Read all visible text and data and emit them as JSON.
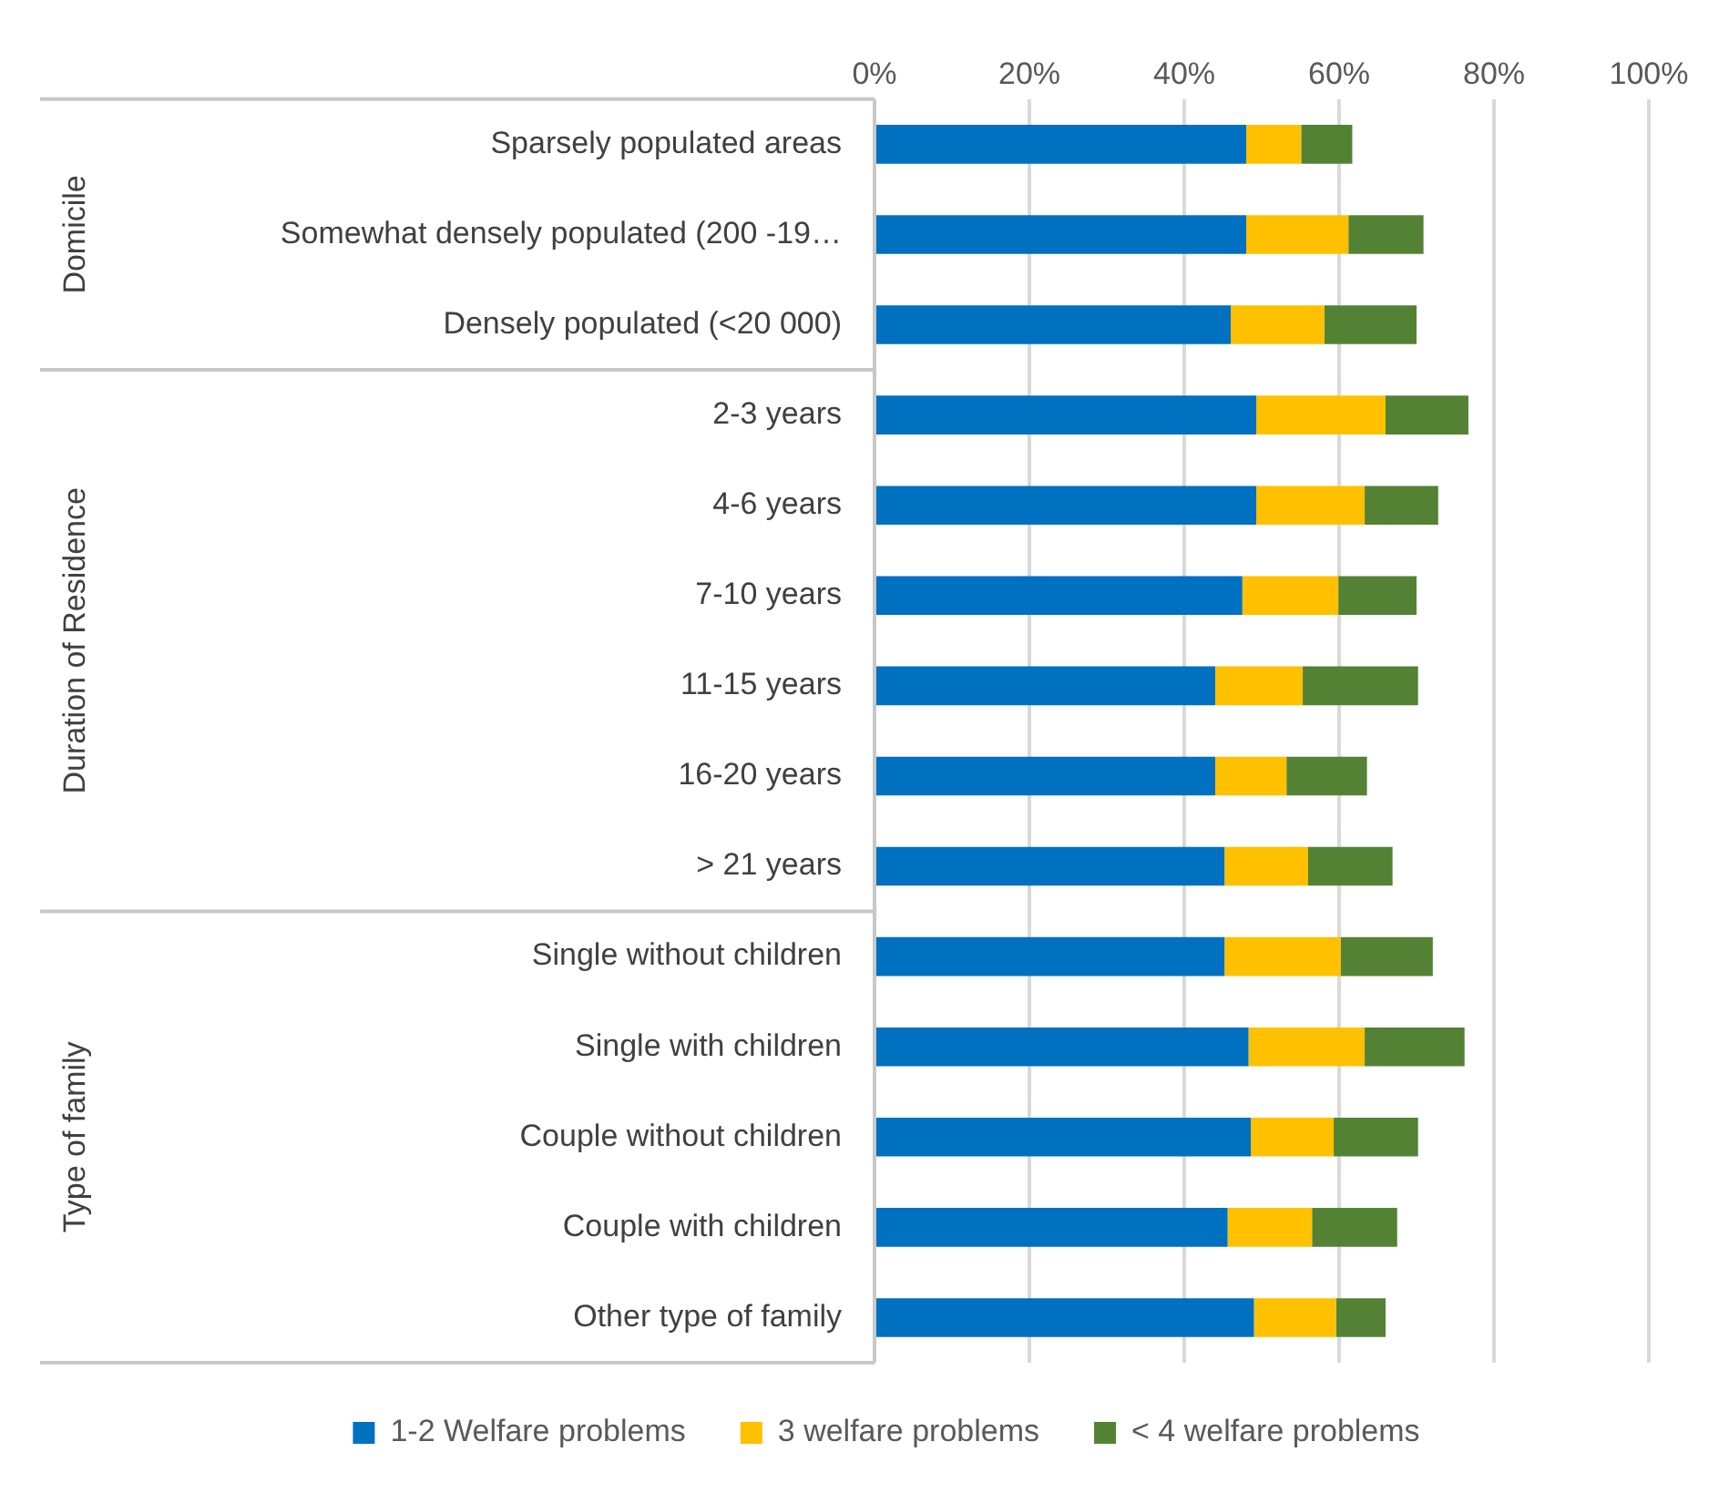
{
  "chart_data": {
    "type": "bar",
    "orientation": "horizontal",
    "stacked": true,
    "categories": [
      "Sparsely populated areas",
      "Somewhat densely populated (200 -19…",
      "Densely populated (<20 000)",
      "2-3 years",
      "4-6 years",
      "7-10 years",
      "11-15 years",
      "16-20 years",
      "> 21 years",
      "Single without children",
      "Single with children",
      "Couple without children",
      "Couple with children",
      "Other type of family"
    ],
    "series": [
      {
        "name": "1-2 Welfare problems",
        "color": "#0070c0",
        "values": [
          48.0,
          48.0,
          46.0,
          49.3,
          49.3,
          47.5,
          44.0,
          44.0,
          45.2,
          45.2,
          48.3,
          48.6,
          45.6,
          49.0
        ]
      },
      {
        "name": "3 welfare problems",
        "color": "#ffc000",
        "values": [
          7.1,
          13.2,
          12.1,
          16.7,
          14.0,
          12.4,
          11.3,
          9.2,
          10.8,
          15.0,
          15.0,
          10.7,
          10.9,
          10.6
        ]
      },
      {
        "name": "< 4 welfare problems",
        "color": "#548235",
        "values": [
          6.6,
          9.7,
          11.9,
          10.7,
          9.5,
          10.1,
          14.9,
          10.4,
          10.9,
          11.9,
          12.9,
          10.9,
          11.0,
          6.4
        ]
      }
    ],
    "xlim": [
      0,
      100
    ],
    "xticks": [
      {
        "value": 0,
        "label": "0%"
      },
      {
        "value": 20,
        "label": "20%"
      },
      {
        "value": 40,
        "label": "40%"
      },
      {
        "value": 60,
        "label": "60%"
      },
      {
        "value": 80,
        "label": "80%"
      },
      {
        "value": 100,
        "label": "100%"
      }
    ],
    "annotations": [
      "Domicile",
      "Duration of Residence",
      "Type of family"
    ],
    "grid": "x",
    "legend": "bottom"
  }
}
